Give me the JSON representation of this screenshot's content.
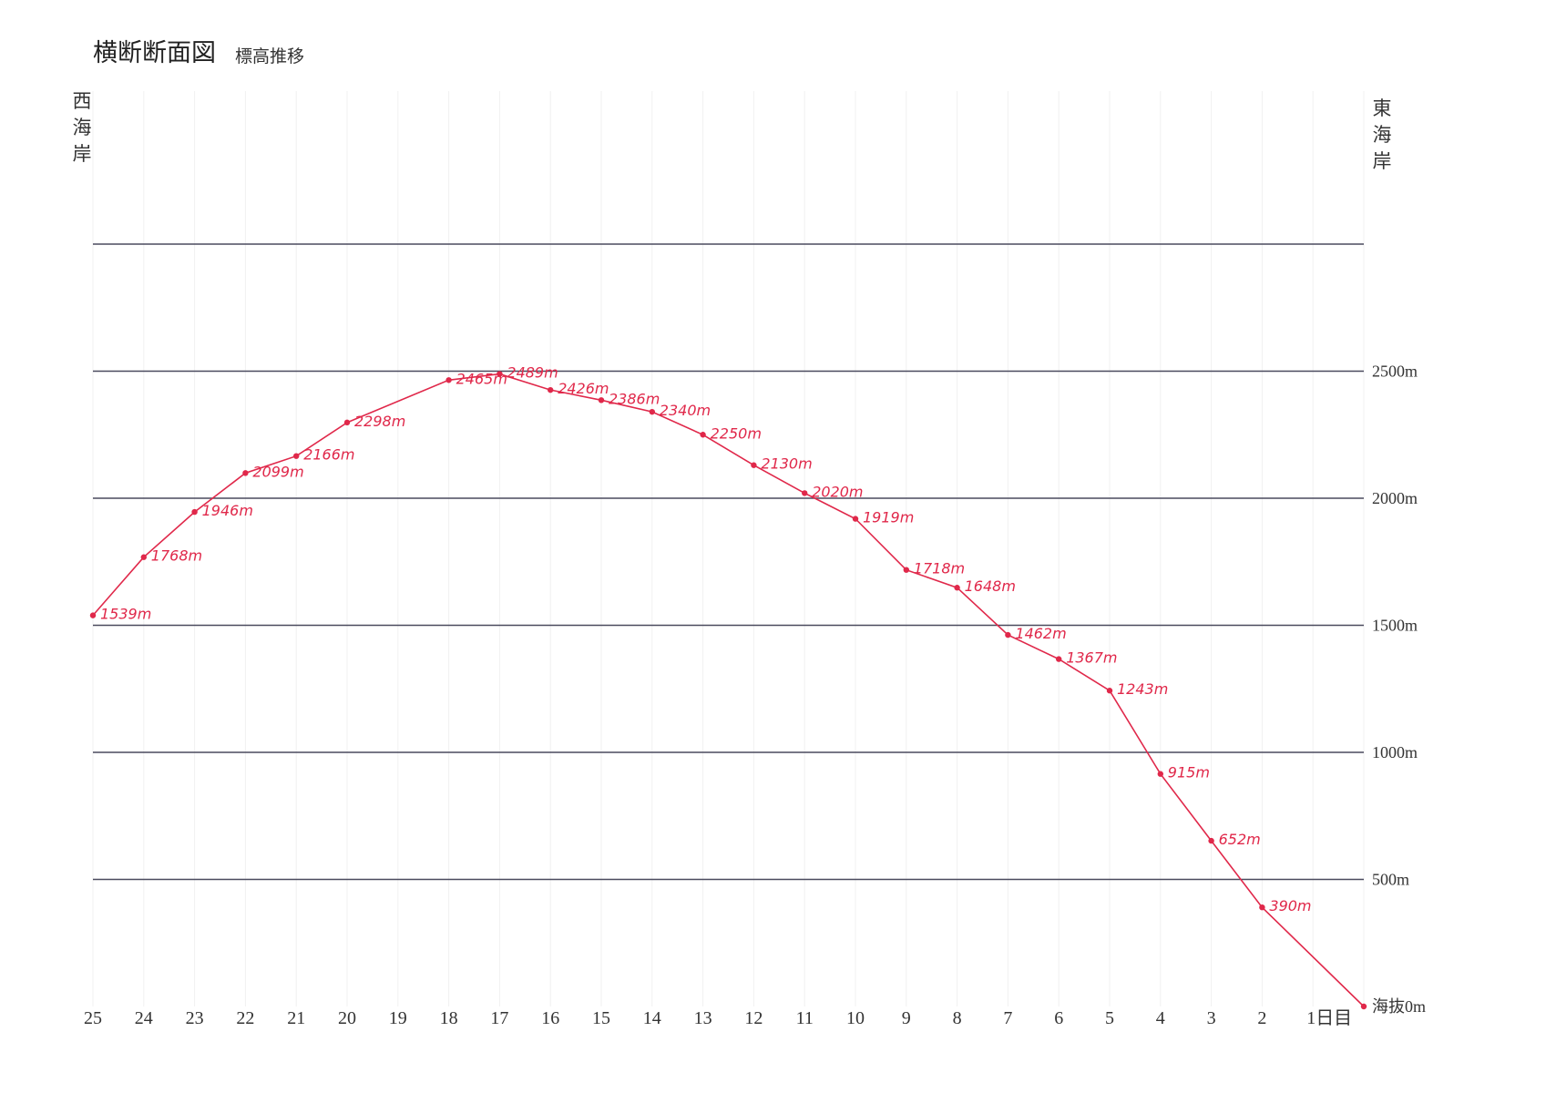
{
  "chart_data": {
    "type": "line",
    "title": "横断断面図",
    "subtitle": "標高推移",
    "left_label": "西海岸",
    "right_label": "東海岸",
    "y_axis": {
      "ticks": [
        {
          "value": 0,
          "label": "海抜0m"
        },
        {
          "value": 500,
          "label": "500m"
        },
        {
          "value": 1000,
          "label": "1000m"
        },
        {
          "value": 1500,
          "label": "1500m"
        },
        {
          "value": 2000,
          "label": "2000m"
        },
        {
          "value": 2500,
          "label": "2500m"
        },
        {
          "value": 3000,
          "label": ""
        }
      ],
      "ylim": [
        0,
        3000
      ]
    },
    "x_axis": {
      "categories": [
        "25",
        "24",
        "23",
        "22",
        "21",
        "20",
        "19",
        "18",
        "17",
        "16",
        "15",
        "14",
        "13",
        "12",
        "11",
        "10",
        "9",
        "8",
        "7",
        "6",
        "5",
        "4",
        "3",
        "2",
        "1日目",
        ""
      ]
    },
    "series": [
      {
        "points": [
          {
            "x": "25",
            "value": 1539,
            "label": "1539m"
          },
          {
            "x": "24",
            "value": 1768,
            "label": "1768m"
          },
          {
            "x": "23",
            "value": 1946,
            "label": "1946m"
          },
          {
            "x": "22",
            "value": 2099,
            "label": "2099m"
          },
          {
            "x": "21",
            "value": 2166,
            "label": "2166m"
          },
          {
            "x": "20",
            "value": 2298,
            "label": "2298m"
          },
          {
            "x": "18",
            "value": 2465,
            "label": "2465m"
          },
          {
            "x": "17",
            "value": 2489,
            "label": "2489m"
          },
          {
            "x": "16",
            "value": 2426,
            "label": "2426m"
          },
          {
            "x": "15",
            "value": 2386,
            "label": "2386m"
          },
          {
            "x": "14",
            "value": 2340,
            "label": "2340m"
          },
          {
            "x": "13",
            "value": 2250,
            "label": "2250m"
          },
          {
            "x": "12",
            "value": 2130,
            "label": "2130m"
          },
          {
            "x": "11",
            "value": 2020,
            "label": "2020m"
          },
          {
            "x": "10",
            "value": 1919,
            "label": "1919m"
          },
          {
            "x": "9",
            "value": 1718,
            "label": "1718m"
          },
          {
            "x": "8",
            "value": 1648,
            "label": "1648m"
          },
          {
            "x": "7",
            "value": 1462,
            "label": "1462m"
          },
          {
            "x": "6",
            "value": 1367,
            "label": "1367m"
          },
          {
            "x": "5",
            "value": 1243,
            "label": "1243m"
          },
          {
            "x": "4",
            "value": 915,
            "label": "915m"
          },
          {
            "x": "3",
            "value": 652,
            "label": "652m"
          },
          {
            "x": "2",
            "value": 390,
            "label": "390m"
          },
          {
            "x": "",
            "value": 0,
            "label": ""
          }
        ]
      }
    ],
    "colors": {
      "line": "#e0284a",
      "grid": "#4a4a5e"
    },
    "grid": true
  }
}
